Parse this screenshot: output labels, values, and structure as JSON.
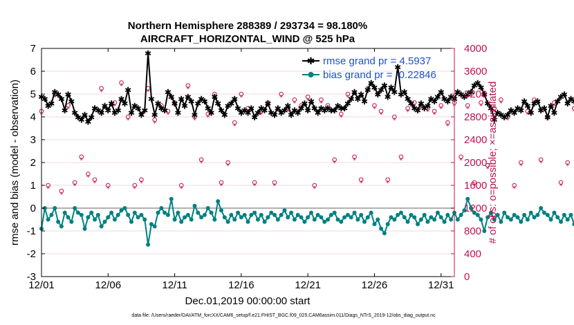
{
  "title_line1": "Northern Hemisphere 288389 / 293734 = 98.180%",
  "title_line2": "AIRCRAFT_HORIZONTAL_WIND @ 525 hPa",
  "legend": {
    "rmse": "rmse grand pr = 4.5937",
    "bias": "bias grand pr = -0.22846"
  },
  "xlabel": "Dec.01,2019 00:00:00 start",
  "ylabel_left": "rmse and bias (model - observation)",
  "ylabel_right": "# of obs: o=possible; ×=assimilated",
  "footnote": "data file: /Users/raeder/DAI/ATM_forcXX/CAM6_setup/f.e21.FHIST_BGC.f09_025.CAM6assim.011/Diags_NTrS_2019-12/obs_diag_output.nc",
  "chart_data": {
    "type": "line",
    "title": "Northern Hemisphere 288389 / 293734 = 98.180% — AIRCRAFT_HORIZONTAL_WIND @ 525 hPa",
    "xlabel": "Dec.01,2019 00:00:00 start",
    "ylabel": "rmse and bias (model - observation)",
    "y2label": "# of obs: o=possible; ×=assimilated",
    "xlim": [
      1,
      32
    ],
    "ylim": [
      -3,
      7
    ],
    "y2lim": [
      0,
      4000
    ],
    "x_ticks": [
      1,
      6,
      11,
      16,
      21,
      26,
      31
    ],
    "x_tick_labels": [
      "12/01",
      "12/06",
      "12/11",
      "12/16",
      "12/21",
      "12/26",
      "12/31"
    ],
    "y_ticks": [
      -3,
      -2,
      -1,
      0,
      1,
      2,
      3,
      4,
      5,
      6,
      7
    ],
    "y2_ticks": [
      0,
      400,
      800,
      1200,
      1600,
      2000,
      2400,
      2800,
      3200,
      3600,
      4000
    ],
    "time_step_days": 0.25,
    "series": [
      {
        "name": "rmse grand pr = 4.5937",
        "color": "#000000",
        "marker": "star",
        "values": [
          4.9,
          4.8,
          4.5,
          4.6,
          5.1,
          5.0,
          4.8,
          4.3,
          5.0,
          4.7,
          4.2,
          4.0,
          3.9,
          4.1,
          3.8,
          4.0,
          4.4,
          4.3,
          4.2,
          4.5,
          4.3,
          4.6,
          4.2,
          4.3,
          4.8,
          4.6,
          5.2,
          4.2,
          4.5,
          4.4,
          4.1,
          4.3,
          6.8,
          4.8,
          4.1,
          4.6,
          4.4,
          4.3,
          5.1,
          4.9,
          4.6,
          4.2,
          4.8,
          4.5,
          4.9,
          4.7,
          4.1,
          4.6,
          4.8,
          4.7,
          4.4,
          4.2,
          4.9,
          4.6,
          4.3,
          4.1,
          4.5,
          4.6,
          4.8,
          4.4,
          4.2,
          4.3,
          4.2,
          4.4,
          4.0,
          4.2,
          4.4,
          4.3,
          4.6,
          4.2,
          4.1,
          4.4,
          4.2,
          4.3,
          4.5,
          4.1,
          4.3,
          4.2,
          4.4,
          4.6,
          4.3,
          4.7,
          4.4,
          4.2,
          4.4,
          4.3,
          4.4,
          4.3,
          4.3,
          4.5,
          4.4,
          4.4,
          4.6,
          4.8,
          5.1,
          4.8,
          5.0,
          4.7,
          5.2,
          5.5,
          5.3,
          5.0,
          5.2,
          5.4,
          4.9,
          5.3,
          5.1,
          6.2,
          5.0,
          5.1,
          4.8,
          4.6,
          4.4,
          4.3,
          4.6,
          4.4,
          4.5,
          4.8,
          4.7,
          4.9,
          5.1,
          4.8,
          4.7,
          4.9,
          4.8,
          5.1,
          5.0,
          4.9,
          5.0,
          5.1,
          5.4,
          5.5,
          5.3,
          5.0,
          4.6,
          4.4,
          3.9,
          4.2,
          4.1,
          4.0,
          4.1,
          4.3,
          4.2,
          4.4,
          4.3,
          4.7,
          4.5,
          4.2,
          4.6,
          4.7,
          4.3,
          4.4,
          4.0,
          4.5,
          4.2,
          4.7,
          4.9,
          5.0,
          4.6,
          4.8,
          4.7,
          4.4,
          4.6,
          4.5,
          4.6,
          5.2,
          4.5,
          4.3,
          4.3,
          4.0,
          3.9,
          4.2,
          4.5,
          4.3,
          4.4,
          4.0,
          4.1,
          4.3,
          4.2,
          4.5,
          4.4,
          4.6,
          4.4,
          4.3,
          4.0,
          4.1,
          3.9,
          3.9,
          4.4,
          4.0,
          4.2,
          4.0,
          4.1,
          4.6,
          4.3,
          4.4,
          4.2,
          4.4,
          4.5,
          4.3,
          4.1,
          4.6,
          4.8,
          4.9,
          4.8,
          4.6,
          4.1,
          4.7,
          4.9,
          4.6,
          4.8,
          4.7,
          4.2,
          4.0,
          4.5,
          4.9,
          4.7,
          4.8,
          4.3,
          4.9,
          4.6,
          4.5,
          4.8,
          4.6,
          4.3,
          4.5,
          4.4,
          4.7,
          4.6,
          4.2,
          4.3,
          4.6,
          4.8,
          4.9,
          4.6,
          4.4,
          4.7,
          4.3,
          4.4,
          4.3,
          4.4,
          4.3,
          4.5,
          4.2,
          4.4,
          4.3,
          4.6,
          4.4,
          4.1,
          4.3,
          4.5,
          4.4,
          4.8,
          5.3,
          5.0,
          4.6,
          4.8,
          4.3,
          4.1,
          4.2,
          4.0,
          3.9
        ]
      },
      {
        "name": "bias grand pr = -0.22846",
        "color": "#008080",
        "marker": "dot",
        "values": [
          -0.9,
          0.0,
          -0.5,
          -0.3,
          0.0,
          -0.6,
          -0.8,
          -0.2,
          -0.4,
          -0.6,
          0.0,
          -0.2,
          -0.3,
          -0.9,
          -0.4,
          -0.2,
          -0.5,
          -0.3,
          -0.8,
          -0.6,
          -0.4,
          -0.2,
          -0.5,
          -0.3,
          -0.1,
          0.0,
          -0.3,
          -0.6,
          -0.2,
          -0.4,
          -0.3,
          -0.5,
          -1.6,
          -0.7,
          -0.8,
          -0.2,
          0.0,
          -0.2,
          -0.3,
          0.4,
          -0.5,
          -0.2,
          -0.6,
          -0.4,
          -0.3,
          -0.5,
          0.1,
          -0.2,
          -0.4,
          -0.3,
          0.0,
          -0.2,
          -0.5,
          0.3,
          -0.1,
          -0.4,
          -0.6,
          -0.3,
          -0.5,
          -0.2,
          -0.4,
          -0.3,
          -0.6,
          -0.3,
          -0.2,
          -0.5,
          -0.3,
          -0.6,
          -0.4,
          -0.2,
          -0.3,
          -0.5,
          -0.3,
          -0.1,
          -0.4,
          -0.2,
          -0.5,
          -0.3,
          -0.4,
          -0.6,
          -0.4,
          -0.2,
          -0.5,
          -0.3,
          -0.4,
          -0.6,
          -0.5,
          -0.3,
          -0.2,
          -0.5,
          -0.6,
          -0.4,
          -0.3,
          -0.4,
          -0.2,
          -0.5,
          -0.3,
          -0.6,
          -0.4,
          -0.2,
          -0.7,
          -0.5,
          -0.9,
          -1.1,
          -0.7,
          -0.4,
          -0.5,
          -0.3,
          -0.2,
          -0.4,
          -0.6,
          -0.3,
          -0.4,
          -0.7,
          -0.5,
          -0.3,
          -0.6,
          -0.4,
          -0.5,
          -0.2,
          -0.4,
          -0.6,
          -0.3,
          -0.5,
          -0.2,
          -0.5,
          -0.3,
          -0.1,
          0.4,
          0.0,
          -0.2,
          -0.3,
          -0.5,
          -1.0,
          -0.4,
          -0.2,
          -0.5,
          -0.3,
          -0.6,
          -0.2,
          -0.4,
          -0.5,
          -0.3,
          -0.4,
          -0.6,
          -0.3,
          -0.5,
          -0.2,
          -0.4,
          -0.3,
          0.0,
          -0.2,
          -0.3,
          -0.5,
          -0.2,
          -0.4,
          -0.6,
          -0.3,
          -0.5,
          -0.3,
          -0.7,
          -0.4,
          -0.2,
          -0.4,
          -0.3,
          -0.5,
          -0.4,
          -0.6,
          -0.2,
          -0.3,
          -0.5,
          0.0,
          0.2,
          -0.4,
          -0.3,
          -0.5,
          -0.3,
          -0.4,
          -0.5,
          -0.3,
          -0.2,
          0.4,
          0.1,
          0.2,
          -0.1,
          -0.3,
          -0.2,
          -0.4,
          -0.3,
          -0.5,
          -0.2,
          -0.4,
          -0.3,
          -0.6,
          -0.2,
          -0.4,
          -0.3,
          -0.5,
          -0.4,
          -0.2,
          -0.4,
          0.0,
          -0.3,
          -0.5,
          -0.2,
          0.1,
          -0.1,
          -0.4,
          -0.2,
          -0.3,
          -0.5,
          -0.3,
          -0.2,
          -0.4,
          -0.6,
          -0.3,
          -0.2,
          -0.4,
          -0.5,
          -0.2,
          -0.3,
          -0.4,
          -0.6,
          -0.3,
          -0.1,
          -0.3,
          -0.5,
          -0.4,
          -0.2,
          -0.3,
          -0.5,
          -0.2,
          0.0,
          -0.2,
          -0.3,
          -0.4,
          -0.6,
          -0.3,
          -0.2,
          -0.4,
          -0.3,
          -0.2,
          -0.4,
          -0.5,
          -0.3,
          -0.2,
          -0.3,
          -0.6,
          -0.5,
          -0.3,
          -0.2,
          -0.4,
          -0.3,
          -0.4,
          -0.6,
          -0.6,
          -0.6
        ]
      }
    ],
    "obs_counts": {
      "color": "#c0104f",
      "description": "per-time-step observation counts (right axis), o = possible, x = assimilated",
      "possible": [
        2900,
        3200,
        1600,
        2000,
        3200,
        3350,
        1500,
        1700,
        3000,
        1900,
        1650,
        3100,
        2100,
        3200,
        1800,
        3000,
        1700,
        2900,
        3300,
        2000,
        1600,
        3200,
        3050,
        2800,
        3400,
        2150,
        2800,
        3150,
        1600,
        3050,
        1700,
        2900,
        3300,
        2050,
        2750,
        1850,
        3000,
        3200,
        2900,
        1900,
        3050,
        2200,
        1600,
        2950,
        3350,
        1900,
        2800,
        3100,
        2050,
        2700,
        2850,
        1750,
        3200,
        3000,
        1650,
        2950,
        2000,
        3100,
        2700,
        1900,
        3200,
        3000,
        2950,
        2100,
        1650,
        3250,
        2900,
        1800,
        3050,
        2050,
        1650,
        3000,
        3200,
        1950,
        2950,
        1700,
        3100,
        2100,
        3000,
        2000,
        3150,
        2800,
        1600,
        2900,
        3100,
        1950,
        3000,
        2700,
        2050,
        3150,
        2850,
        1750,
        3200,
        2900,
        2100,
        3050,
        1700,
        2950,
        3300,
        2050,
        3000,
        1950,
        2900,
        3150,
        1700,
        2950,
        2800,
        3300,
        2100,
        3050,
        2950,
        1900,
        3050,
        1600,
        3000,
        2050,
        2950,
        3200,
        2900,
        1850,
        3000,
        3100,
        2700,
        1950,
        3050,
        2900,
        2100,
        3200,
        3000,
        2750,
        1650,
        3000,
        3050,
        2900,
        1950,
        3100,
        2950,
        1800,
        3100,
        3200,
        2800,
        2750,
        1600,
        3050,
        2000,
        3000,
        2900,
        1850,
        3100,
        2950,
        2050,
        3000,
        2800,
        1600,
        3050,
        2900,
        1650,
        3100,
        2000,
        3200,
        2950,
        1700,
        3100,
        2900,
        2650,
        3050,
        2000,
        3000,
        2950,
        1650,
        3100,
        1900,
        3000,
        3150,
        1700,
        3100,
        2900,
        2000,
        3050,
        2950,
        1750,
        3000,
        3200,
        2100,
        2900,
        3100,
        1600,
        3000,
        2950,
        1950,
        3050,
        2800,
        1650,
        3150,
        3000,
        2050,
        3050,
        2950,
        2750,
        1600,
        3050,
        3100,
        2100,
        3000,
        2900,
        1650,
        2950,
        2050,
        3100,
        3000,
        2800,
        1700,
        3050,
        2950,
        2000,
        3100,
        3000,
        2700,
        1650,
        2950,
        3100,
        2100,
        3000,
        2900,
        1750,
        3150,
        3000,
        2000,
        2950,
        3050,
        1900,
        3100,
        2900,
        1700,
        3000,
        3150,
        2100,
        2950,
        3000,
        2050,
        3050,
        2900,
        1600,
        3100,
        2950,
        2000,
        3000,
        3100,
        1650,
        3050,
        2950,
        1650,
        2750,
        3200,
        1600,
        2650,
        0,
        1250
      ],
      "assimilated": [
        2850,
        3150,
        1550,
        1950,
        3150,
        3300,
        1450,
        1650,
        2950,
        1850,
        1600,
        3050,
        2050,
        3150,
        1750,
        2950,
        1650,
        2850,
        3250,
        1950,
        1550,
        3150,
        3000,
        2750,
        3350,
        2100,
        2750,
        3100,
        1550,
        3000,
        1650,
        2850,
        3250,
        2000,
        2700,
        1800,
        2950,
        3150,
        2850,
        1850,
        3000,
        2150,
        1550,
        2900,
        3300,
        1850,
        2750,
        3050,
        2000,
        2650,
        2800,
        1700,
        3150,
        2950,
        1600,
        2900,
        1950,
        3050,
        2650,
        1850,
        3150,
        2950,
        2900,
        2050,
        1600,
        3200,
        2850,
        1750,
        3000,
        2000,
        1600,
        2950,
        3150,
        1900,
        2900,
        1650,
        3050,
        2050,
        2950,
        1950,
        3100,
        2750,
        1550,
        2850,
        3050,
        1900,
        2950,
        2650,
        2000,
        3100,
        2800,
        1700,
        3150,
        2850,
        2050,
        3000,
        1650,
        2900,
        3250,
        2000,
        2950,
        1900,
        2850,
        3100,
        1650,
        2900,
        2750,
        3250,
        2050,
        3000,
        2900,
        1850,
        3000,
        1550,
        2950,
        2000,
        2900,
        3150,
        2850,
        1800,
        2950,
        3050,
        2650,
        1900,
        3000,
        2850,
        2050,
        3150,
        2950,
        2700,
        1600,
        2950,
        3000,
        2850,
        1900,
        3050,
        2900,
        1750,
        3050,
        3150,
        2750,
        2700,
        1550,
        3000,
        1950,
        2950,
        2850,
        1800,
        3050,
        2900,
        2000,
        2950,
        2750,
        1550,
        3000,
        2850,
        1600,
        3050,
        1950,
        3150,
        2900,
        1650,
        3050,
        2850,
        2600,
        3000,
        1950,
        2950,
        2900,
        1600,
        3050,
        1850,
        2950,
        3100,
        1650,
        3050,
        2850,
        1950,
        3000,
        2900,
        1700,
        2950,
        3150,
        2050,
        2850,
        3050,
        1550,
        2950,
        2900,
        1900,
        3000,
        2750,
        1600,
        3100,
        2950,
        2000,
        3000,
        2900,
        2700,
        1550,
        3000,
        3050,
        2050,
        2950,
        2850,
        1600,
        2900,
        2000,
        3050,
        2950,
        2750,
        1650,
        3000,
        2900,
        1950,
        3050,
        2950,
        2650,
        1600,
        2900,
        3050,
        2050,
        2950,
        2850,
        1700,
        3100,
        2950,
        1950,
        2900,
        3000,
        1850,
        3050,
        2850,
        1650,
        2950,
        3100,
        2050,
        2900,
        2950,
        2000,
        3000,
        2850,
        1550,
        3050,
        2900,
        1950,
        2950,
        3050,
        1600,
        3000,
        2900,
        1600,
        2700,
        3150,
        1550,
        2600,
        0,
        1200
      ]
    }
  }
}
